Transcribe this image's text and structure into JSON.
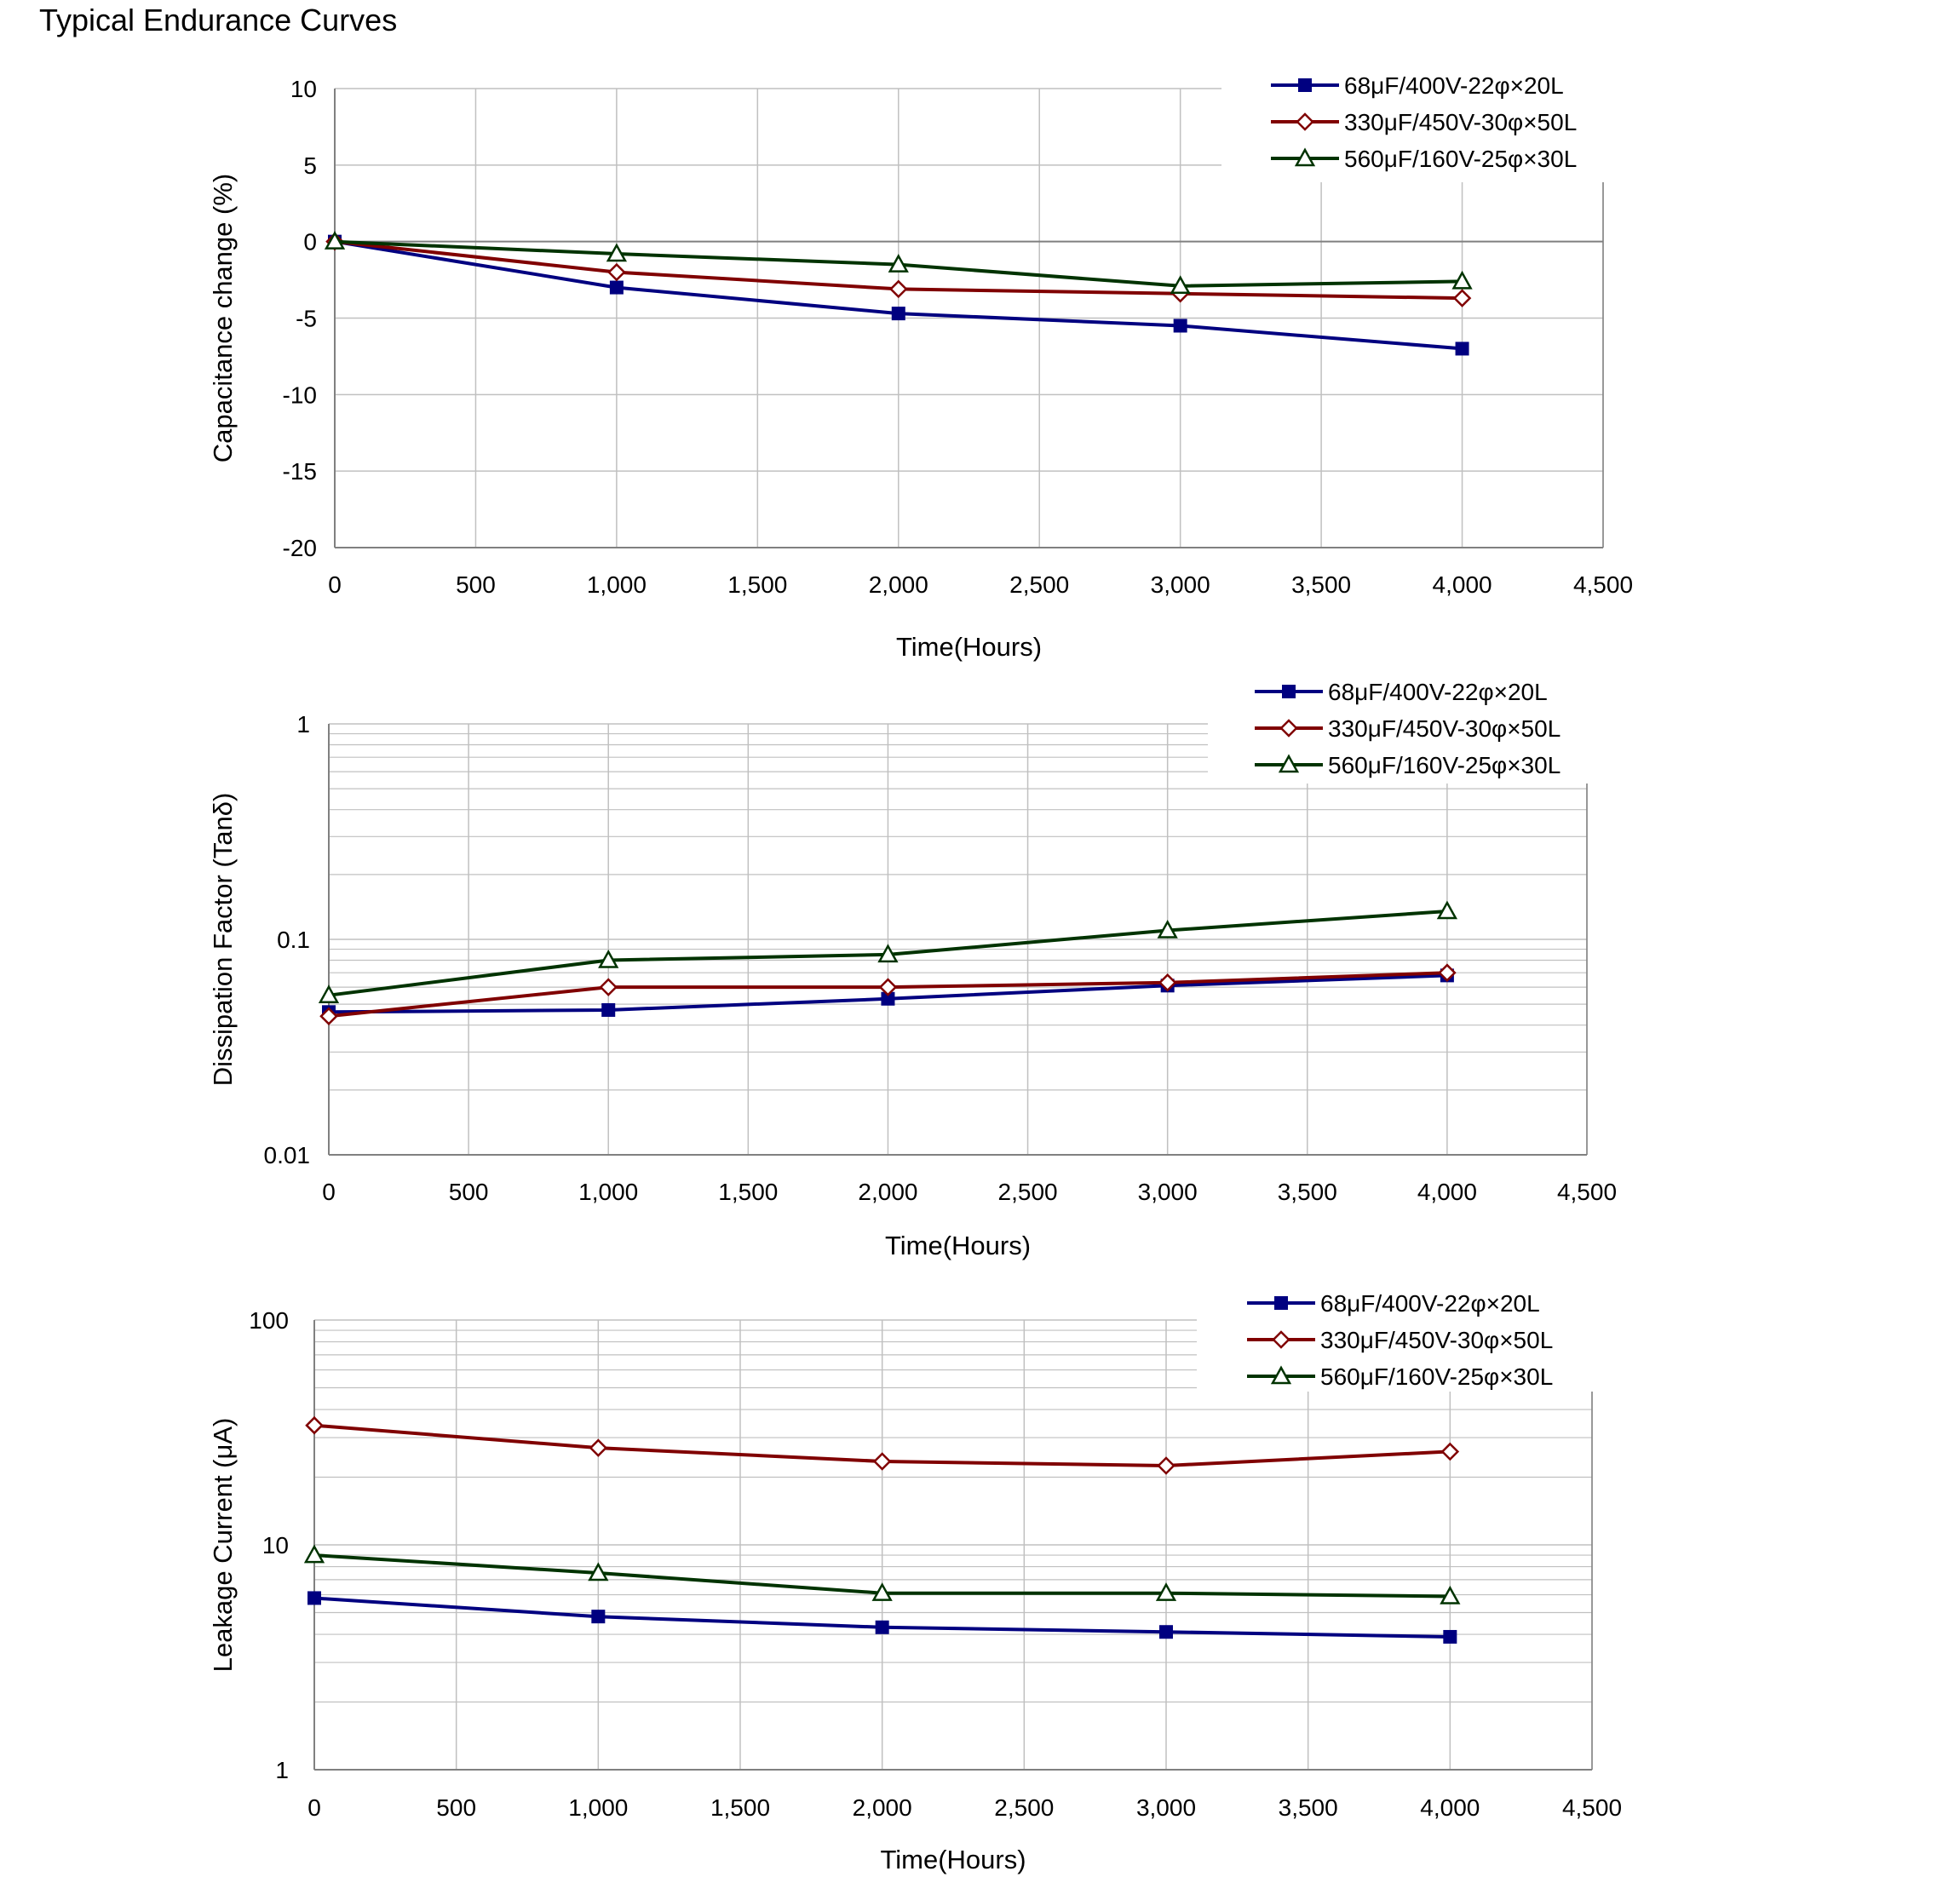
{
  "page_title": "Typical Endurance Curves",
  "colors": {
    "series_68uF": "#000080",
    "series_330uF": "#800000",
    "series_560uF": "#003300",
    "grid": "#c0c0c0",
    "axis": "#808080"
  },
  "chart_data": [
    {
      "type": "line",
      "title": "",
      "xlabel": "Time(Hours)",
      "ylabel": "Capacitance change (%)",
      "yscale": "linear",
      "xlim": [
        0,
        4500
      ],
      "ylim": [
        -20,
        10
      ],
      "x_ticks": [
        0,
        500,
        1000,
        1500,
        2000,
        2500,
        3000,
        3500,
        4000,
        4500
      ],
      "x_tick_labels": [
        "0",
        "500",
        "1,000",
        "1,500",
        "2,000",
        "2,500",
        "3,000",
        "3,500",
        "4,000",
        "4,500"
      ],
      "y_ticks": [
        10,
        5,
        0,
        -5,
        -10,
        -15,
        -20
      ],
      "y_tick_labels": [
        "10",
        "5",
        "0",
        "-5",
        "-10",
        "-15",
        "-20"
      ],
      "grid": true,
      "legend_position": "top-right",
      "series": [
        {
          "name": "68μF/400V-22φ×20L",
          "marker": "square",
          "color_key": "series_68uF",
          "x": [
            0,
            1000,
            2000,
            3000,
            4000
          ],
          "values": [
            0,
            -3.0,
            -4.7,
            -5.5,
            -7.0
          ]
        },
        {
          "name": "330μF/450V-30φ×50L",
          "marker": "diamond",
          "color_key": "series_330uF",
          "x": [
            0,
            1000,
            2000,
            3000,
            4000
          ],
          "values": [
            0,
            -2.0,
            -3.1,
            -3.4,
            -3.7
          ]
        },
        {
          "name": "560μF/160V-25φ×30L",
          "marker": "triangle",
          "color_key": "series_560uF",
          "x": [
            0,
            1000,
            2000,
            3000,
            4000
          ],
          "values": [
            0,
            -0.8,
            -1.5,
            -2.9,
            -2.6
          ]
        }
      ]
    },
    {
      "type": "line",
      "title": "",
      "xlabel": "Time(Hours)",
      "ylabel": "Dissipation Factor (Tanδ)",
      "yscale": "log",
      "xlim": [
        0,
        4500
      ],
      "ylim": [
        0.01,
        1
      ],
      "x_ticks": [
        0,
        500,
        1000,
        1500,
        2000,
        2500,
        3000,
        3500,
        4000,
        4500
      ],
      "x_tick_labels": [
        "0",
        "500",
        "1,000",
        "1,500",
        "2,000",
        "2,500",
        "3,000",
        "3,500",
        "4,000",
        "4,500"
      ],
      "y_ticks": [
        1,
        0.1,
        0.01
      ],
      "y_tick_labels": [
        "1",
        "0.1",
        "0.01"
      ],
      "grid": true,
      "legend_position": "top-right",
      "series": [
        {
          "name": "68μF/400V-22φ×20L",
          "marker": "square",
          "color_key": "series_68uF",
          "x": [
            0,
            1000,
            2000,
            3000,
            4000
          ],
          "values": [
            0.046,
            0.047,
            0.053,
            0.061,
            0.068
          ]
        },
        {
          "name": "330μF/450V-30φ×50L",
          "marker": "diamond",
          "color_key": "series_330uF",
          "x": [
            0,
            1000,
            2000,
            3000,
            4000
          ],
          "values": [
            0.044,
            0.06,
            0.06,
            0.063,
            0.07
          ]
        },
        {
          "name": "560μF/160V-25φ×30L",
          "marker": "triangle",
          "color_key": "series_560uF",
          "x": [
            0,
            1000,
            2000,
            3000,
            4000
          ],
          "values": [
            0.055,
            0.08,
            0.085,
            0.11,
            0.135
          ]
        }
      ]
    },
    {
      "type": "line",
      "title": "",
      "xlabel": "Time(Hours)",
      "ylabel": "Leakage Current (μA)",
      "yscale": "log",
      "xlim": [
        0,
        4500
      ],
      "ylim": [
        1,
        100
      ],
      "x_ticks": [
        0,
        500,
        1000,
        1500,
        2000,
        2500,
        3000,
        3500,
        4000,
        4500
      ],
      "x_tick_labels": [
        "0",
        "500",
        "1,000",
        "1,500",
        "2,000",
        "2,500",
        "3,000",
        "3,500",
        "4,000",
        "4,500"
      ],
      "y_ticks": [
        100,
        10,
        1
      ],
      "y_tick_labels": [
        "100",
        "10",
        "1"
      ],
      "grid": true,
      "legend_position": "top-right",
      "series": [
        {
          "name": "68μF/400V-22φ×20L",
          "marker": "square",
          "color_key": "series_68uF",
          "x": [
            0,
            1000,
            2000,
            3000,
            4000
          ],
          "values": [
            5.8,
            4.8,
            4.3,
            4.1,
            3.9
          ]
        },
        {
          "name": "330μF/450V-30φ×50L",
          "marker": "diamond",
          "color_key": "series_330uF",
          "x": [
            0,
            1000,
            2000,
            3000,
            4000
          ],
          "values": [
            34,
            27,
            23.5,
            22.5,
            26
          ]
        },
        {
          "name": "560μF/160V-25φ×30L",
          "marker": "triangle",
          "color_key": "series_560uF",
          "x": [
            0,
            1000,
            2000,
            3000,
            4000
          ],
          "values": [
            9,
            7.5,
            6.1,
            6.1,
            5.9
          ]
        }
      ]
    }
  ]
}
